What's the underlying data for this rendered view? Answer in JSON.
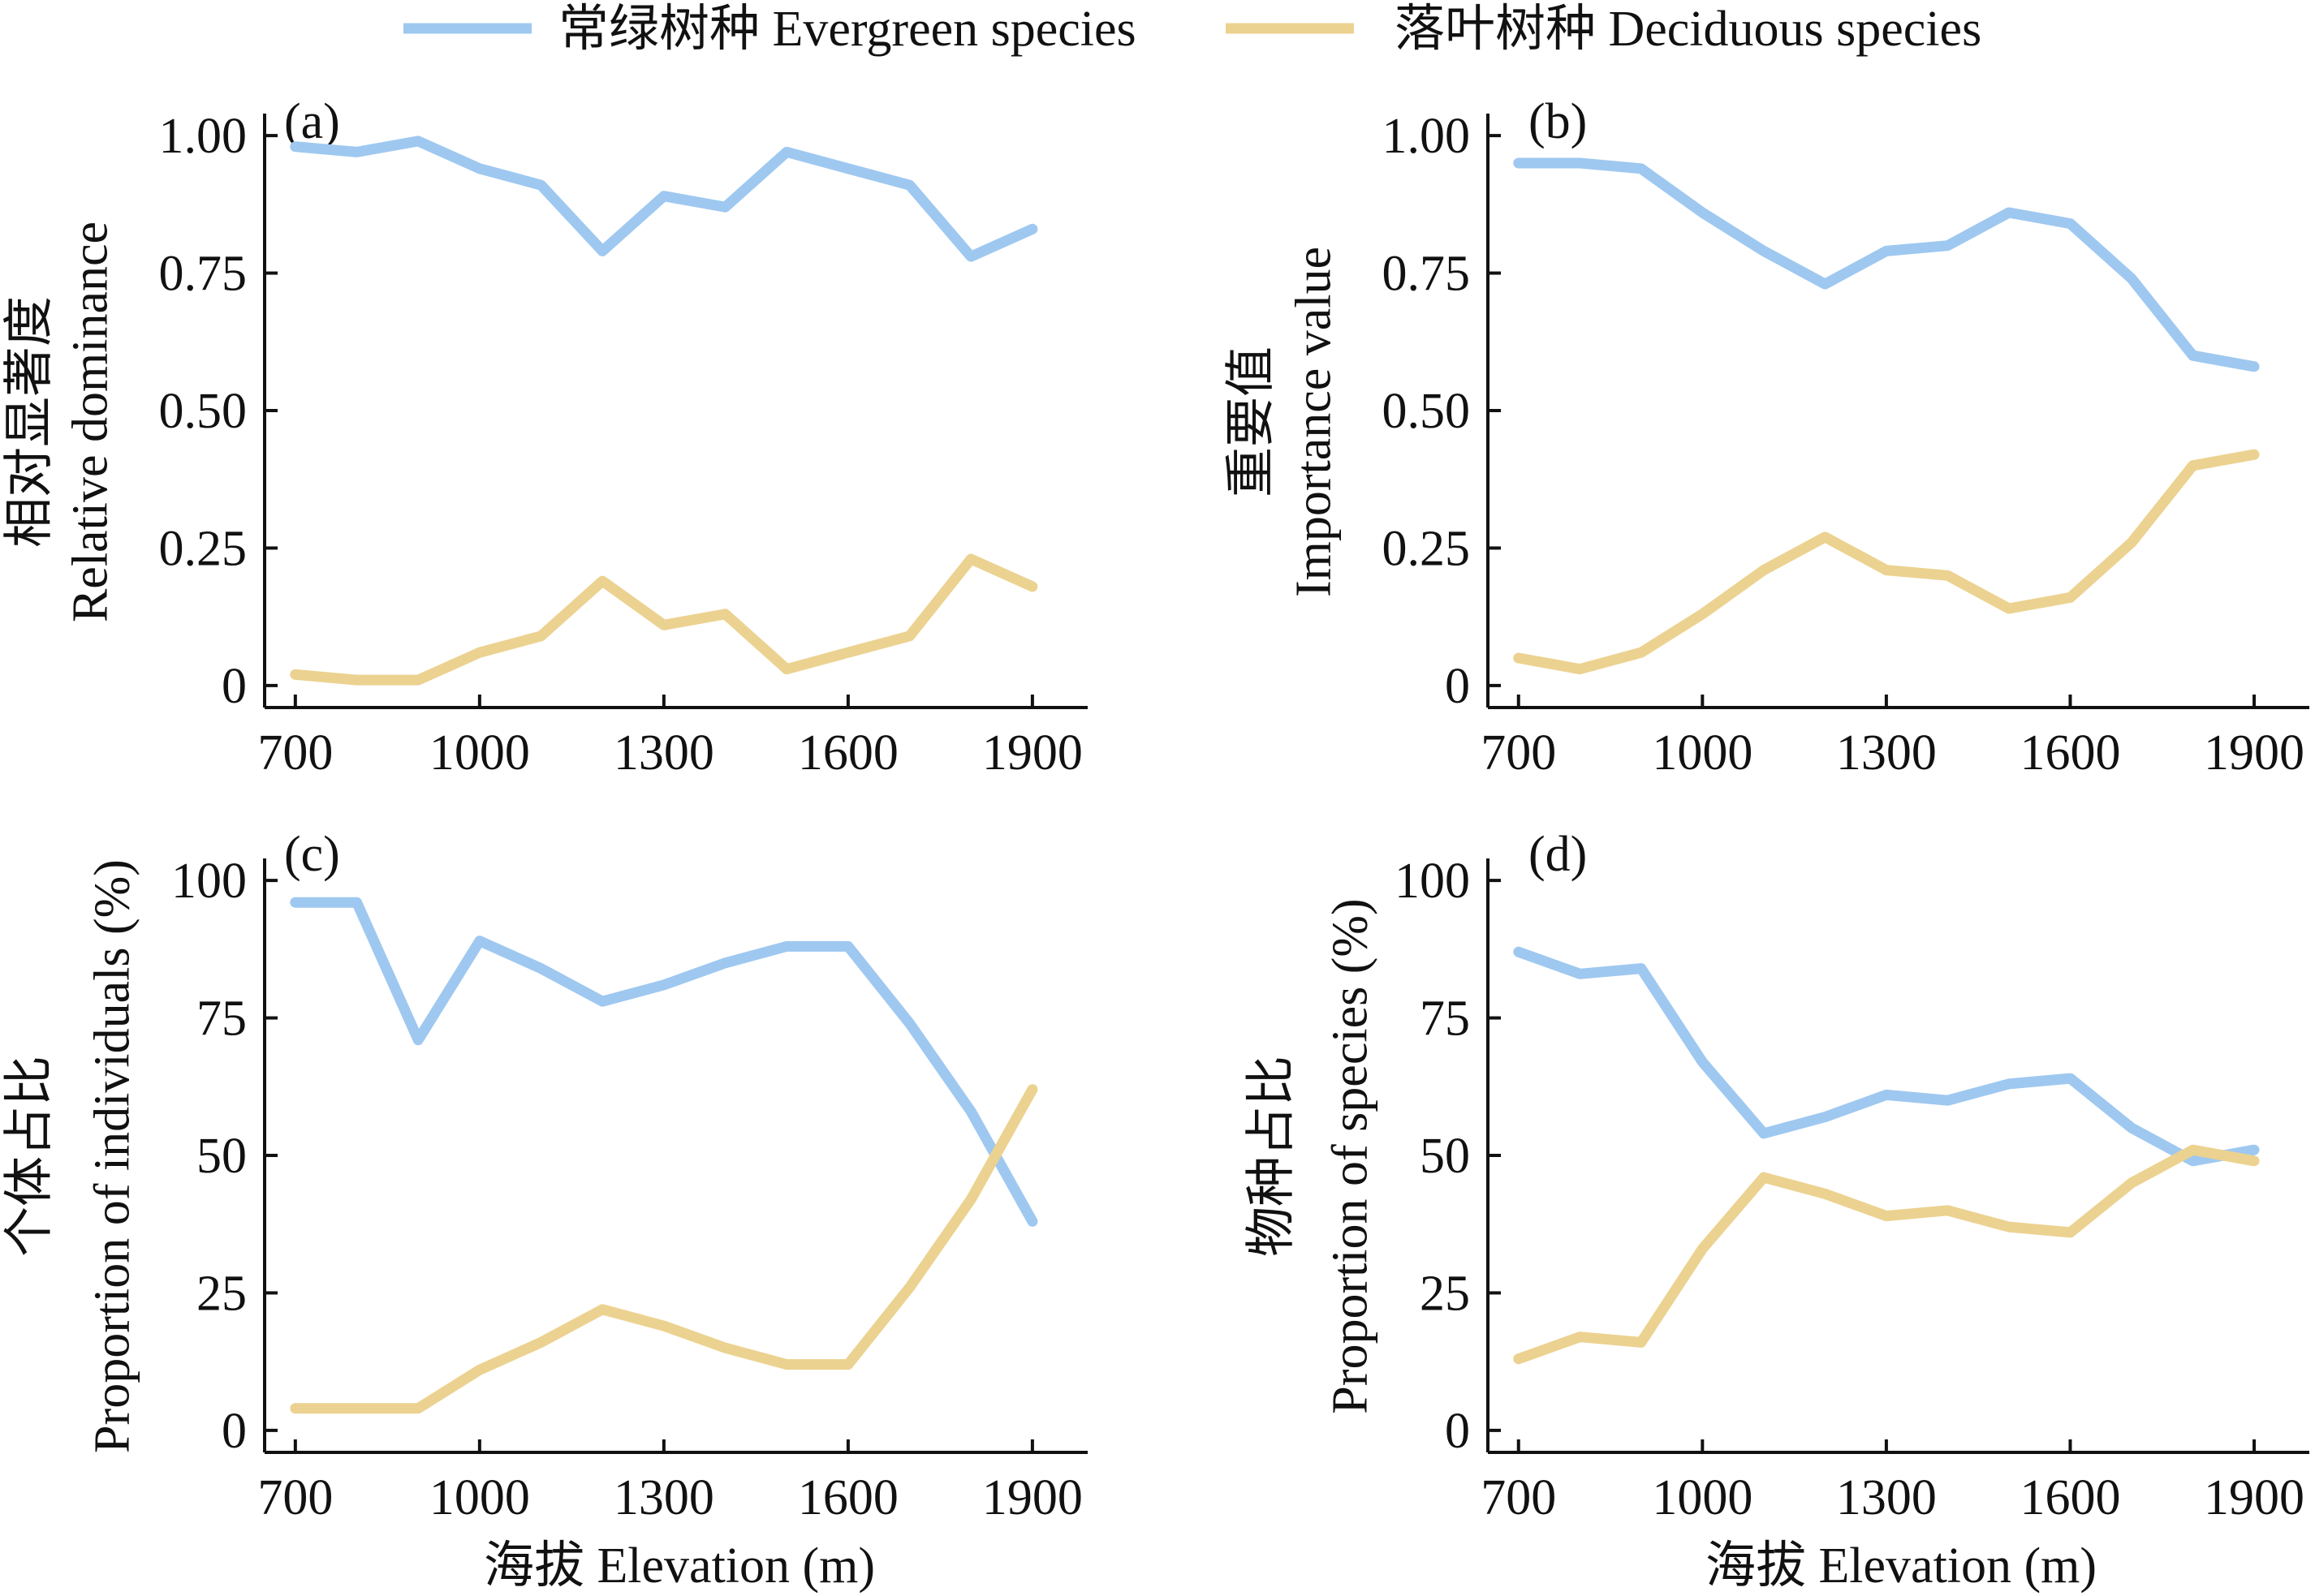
{
  "legend": [
    {
      "label": "常绿树种 Evergreen species",
      "color": "#9ec8f0"
    },
    {
      "label": "落叶树种 Deciduous species",
      "color": "#ecd290"
    }
  ],
  "xaxis_label": "海拔 Elevation (m)",
  "chart_data": [
    {
      "type": "line",
      "panel": "(a)",
      "ylabel_cn": "相对显著度",
      "ylabel_en": "Relative dominance",
      "x": [
        700,
        800,
        900,
        1000,
        1100,
        1200,
        1300,
        1400,
        1500,
        1600,
        1700,
        1800,
        1900
      ],
      "xticks": [
        700,
        1000,
        1300,
        1600,
        1900
      ],
      "xtick_labels": [
        "700",
        "1000",
        "1300",
        "1600",
        "1900"
      ],
      "xlim": [
        650,
        1990
      ],
      "yticks": [
        0,
        0.25,
        0.5,
        0.75,
        1.0
      ],
      "ytick_labels": [
        "0",
        "0.25",
        "0.50",
        "0.75",
        "1.00"
      ],
      "ylim": [
        -0.04,
        1.04
      ],
      "series": [
        {
          "name": "常绿树种 Evergreen species",
          "color": "#9ec8f0",
          "values": [
            0.98,
            0.97,
            0.99,
            0.94,
            0.91,
            0.79,
            0.89,
            0.87,
            0.97,
            0.94,
            0.91,
            0.78,
            0.83
          ]
        },
        {
          "name": "落叶树种 Deciduous species",
          "color": "#ecd290",
          "values": [
            0.02,
            0.01,
            0.01,
            0.06,
            0.09,
            0.19,
            0.11,
            0.13,
            0.03,
            0.06,
            0.09,
            0.23,
            0.18
          ]
        }
      ]
    },
    {
      "type": "line",
      "panel": "(b)",
      "ylabel_cn": "重要值",
      "ylabel_en": "Importance value",
      "x": [
        700,
        800,
        900,
        1000,
        1100,
        1200,
        1300,
        1400,
        1500,
        1600,
        1700,
        1800,
        1900
      ],
      "xticks": [
        700,
        1000,
        1300,
        1600,
        1900
      ],
      "xtick_labels": [
        "700",
        "1000",
        "1300",
        "1600",
        "1900"
      ],
      "xlim": [
        650,
        1990
      ],
      "yticks": [
        0,
        0.25,
        0.5,
        0.75,
        1.0
      ],
      "ytick_labels": [
        "0",
        "0.25",
        "0.50",
        "0.75",
        "1.00"
      ],
      "ylim": [
        -0.04,
        1.04
      ],
      "series": [
        {
          "name": "常绿树种 Evergreen species",
          "color": "#9ec8f0",
          "values": [
            0.95,
            0.95,
            0.94,
            0.86,
            0.79,
            0.73,
            0.79,
            0.8,
            0.86,
            0.84,
            0.74,
            0.6,
            0.58
          ]
        },
        {
          "name": "落叶树种 Deciduous species",
          "color": "#ecd290",
          "values": [
            0.05,
            0.03,
            0.06,
            0.13,
            0.21,
            0.27,
            0.21,
            0.2,
            0.14,
            0.16,
            0.26,
            0.4,
            0.42
          ]
        }
      ]
    },
    {
      "type": "line",
      "panel": "(c)",
      "ylabel_cn": "个体占比",
      "ylabel_en": "Proportion of individuals (%)",
      "x": [
        700,
        800,
        900,
        1000,
        1100,
        1200,
        1300,
        1400,
        1500,
        1600,
        1700,
        1800,
        1900
      ],
      "xticks": [
        700,
        1000,
        1300,
        1600,
        1900
      ],
      "xtick_labels": [
        "700",
        "1000",
        "1300",
        "1600",
        "1900"
      ],
      "xlim": [
        650,
        1990
      ],
      "yticks": [
        0,
        25,
        50,
        75,
        100
      ],
      "ytick_labels": [
        "0",
        "25",
        "50",
        "75",
        "100"
      ],
      "ylim": [
        -4,
        104
      ],
      "series": [
        {
          "name": "常绿树种 Evergreen species",
          "color": "#9ec8f0",
          "values": [
            96,
            96,
            71,
            89,
            84,
            78,
            81,
            85,
            88,
            88,
            74,
            58,
            38
          ]
        },
        {
          "name": "落叶树种 Deciduous species",
          "color": "#ecd290",
          "values": [
            4,
            4,
            4,
            11,
            16,
            22,
            19,
            15,
            12,
            12,
            26,
            42,
            62
          ]
        }
      ]
    },
    {
      "type": "line",
      "panel": "(d)",
      "ylabel_cn": "物种占比",
      "ylabel_en": "Proportion of species (%)",
      "x": [
        700,
        800,
        900,
        1000,
        1100,
        1200,
        1300,
        1400,
        1500,
        1600,
        1700,
        1800,
        1900
      ],
      "xticks": [
        700,
        1000,
        1300,
        1600,
        1900
      ],
      "xtick_labels": [
        "700",
        "1000",
        "1300",
        "1600",
        "1900"
      ],
      "xlim": [
        650,
        1990
      ],
      "yticks": [
        0,
        25,
        50,
        75,
        100
      ],
      "ytick_labels": [
        "0",
        "25",
        "50",
        "75",
        "100"
      ],
      "ylim": [
        -4,
        104
      ],
      "series": [
        {
          "name": "常绿树种 Evergreen species",
          "color": "#9ec8f0",
          "values": [
            87,
            83,
            84,
            67,
            54,
            57,
            61,
            60,
            63,
            64,
            55,
            49,
            51
          ]
        },
        {
          "name": "落叶树种 Deciduous species",
          "color": "#ecd290",
          "values": [
            13,
            17,
            16,
            33,
            46,
            43,
            39,
            40,
            37,
            36,
            45,
            51,
            49
          ]
        }
      ]
    }
  ]
}
